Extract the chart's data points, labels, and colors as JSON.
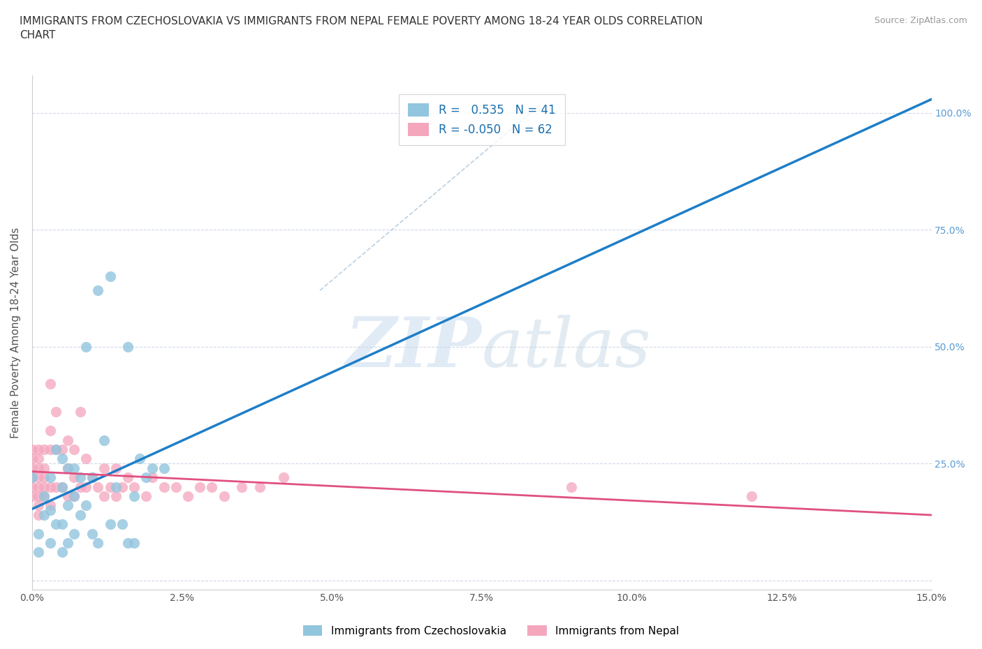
{
  "title": "IMMIGRANTS FROM CZECHOSLOVAKIA VS IMMIGRANTS FROM NEPAL FEMALE POVERTY AMONG 18-24 YEAR OLDS CORRELATION\nCHART",
  "source": "Source: ZipAtlas.com",
  "ylabel_label": "Female Poverty Among 18-24 Year Olds",
  "legend_label1": "Immigrants from Czechoslovakia",
  "legend_label2": "Immigrants from Nepal",
  "R1": 0.535,
  "N1": 41,
  "R2": -0.05,
  "N2": 62,
  "color_blue": "#92C5DE",
  "color_pink": "#F4A6BD",
  "line_blue": "#1E7EC8",
  "line_pink": "#E05080",
  "background_color": "#ffffff",
  "grid_color": "#d0d8e8",
  "xlim": [
    0.0,
    0.15
  ],
  "ylim": [
    -0.02,
    1.08
  ],
  "czech_x": [
    0.0,
    0.001,
    0.001,
    0.002,
    0.002,
    0.003,
    0.003,
    0.003,
    0.004,
    0.004,
    0.005,
    0.005,
    0.005,
    0.005,
    0.006,
    0.006,
    0.006,
    0.007,
    0.007,
    0.007,
    0.008,
    0.008,
    0.009,
    0.009,
    0.01,
    0.01,
    0.011,
    0.011,
    0.012,
    0.013,
    0.013,
    0.014,
    0.015,
    0.016,
    0.016,
    0.017,
    0.017,
    0.018,
    0.019,
    0.02,
    0.022
  ],
  "czech_y": [
    0.22,
    0.06,
    0.1,
    0.14,
    0.18,
    0.08,
    0.15,
    0.22,
    0.12,
    0.28,
    0.06,
    0.12,
    0.2,
    0.26,
    0.08,
    0.16,
    0.24,
    0.1,
    0.18,
    0.24,
    0.14,
    0.22,
    0.16,
    0.5,
    0.1,
    0.22,
    0.08,
    0.62,
    0.3,
    0.12,
    0.65,
    0.2,
    0.12,
    0.08,
    0.5,
    0.08,
    0.18,
    0.26,
    0.22,
    0.24,
    0.24
  ],
  "nepal_x": [
    0.0,
    0.0,
    0.0,
    0.0,
    0.0,
    0.0,
    0.001,
    0.001,
    0.001,
    0.001,
    0.001,
    0.001,
    0.001,
    0.001,
    0.002,
    0.002,
    0.002,
    0.002,
    0.002,
    0.003,
    0.003,
    0.003,
    0.003,
    0.003,
    0.004,
    0.004,
    0.004,
    0.005,
    0.005,
    0.006,
    0.006,
    0.006,
    0.007,
    0.007,
    0.007,
    0.008,
    0.008,
    0.009,
    0.009,
    0.01,
    0.011,
    0.012,
    0.012,
    0.013,
    0.014,
    0.014,
    0.015,
    0.016,
    0.017,
    0.019,
    0.02,
    0.022,
    0.024,
    0.026,
    0.028,
    0.03,
    0.032,
    0.035,
    0.038,
    0.042,
    0.09,
    0.12
  ],
  "nepal_y": [
    0.18,
    0.2,
    0.22,
    0.24,
    0.26,
    0.28,
    0.14,
    0.16,
    0.18,
    0.2,
    0.22,
    0.24,
    0.26,
    0.28,
    0.18,
    0.2,
    0.22,
    0.24,
    0.28,
    0.16,
    0.2,
    0.28,
    0.32,
    0.42,
    0.2,
    0.28,
    0.36,
    0.2,
    0.28,
    0.18,
    0.24,
    0.3,
    0.18,
    0.22,
    0.28,
    0.2,
    0.36,
    0.2,
    0.26,
    0.22,
    0.2,
    0.18,
    0.24,
    0.2,
    0.18,
    0.24,
    0.2,
    0.22,
    0.2,
    0.18,
    0.22,
    0.2,
    0.2,
    0.18,
    0.2,
    0.2,
    0.18,
    0.2,
    0.2,
    0.22,
    0.2,
    0.18
  ],
  "watermark_zip": "ZIP",
  "watermark_atlas": "atlas",
  "dash_line_x": [
    0.048,
    0.085
  ],
  "dash_line_y": [
    0.62,
    1.02
  ]
}
